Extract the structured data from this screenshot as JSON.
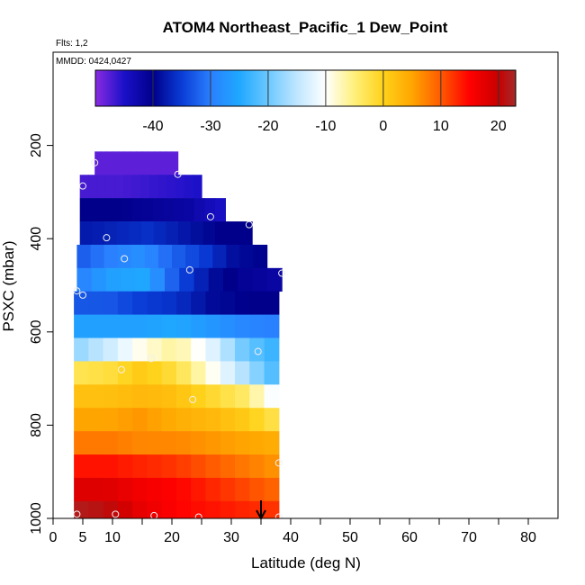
{
  "chart_data": {
    "type": "heatmap",
    "title": "ATOM4 Northeast_Pacific_1 Dew_Point",
    "flights_label": "Flts: 1,2",
    "dates_label": "MMDD: 0424,0427",
    "xlabel": "Latitude (deg N)",
    "ylabel": "PSXC (mbar)",
    "xlim": [
      0,
      85
    ],
    "ylim": [
      1000,
      0
    ],
    "x_ticks": [
      0,
      5,
      10,
      20,
      30,
      40,
      50,
      60,
      70,
      80
    ],
    "x_tick_labels": [
      "0",
      "5",
      "10",
      "20",
      "30",
      "40",
      "50",
      "60",
      "70",
      "80"
    ],
    "y_ticks": [
      200,
      400,
      600,
      800,
      1000
    ],
    "y_tick_labels": [
      "200",
      "400",
      "600",
      "800",
      "1000"
    ],
    "colorbar": {
      "range": [
        -50,
        23
      ],
      "tick_values": [
        -40,
        -30,
        -20,
        -10,
        0,
        10,
        20
      ],
      "tick_labels": [
        "-40",
        "-30",
        "-20",
        "-10",
        "0",
        "10",
        "20"
      ],
      "stops": [
        {
          "v": -50,
          "c": "#8a2be2"
        },
        {
          "v": -45,
          "c": "#1a10c8"
        },
        {
          "v": -40,
          "c": "#00008b"
        },
        {
          "v": -35,
          "c": "#0a3cd6"
        },
        {
          "v": -30,
          "c": "#2a7fff"
        },
        {
          "v": -25,
          "c": "#1fa8ff"
        },
        {
          "v": -20,
          "c": "#6cc8ff"
        },
        {
          "v": -15,
          "c": "#bfe6ff"
        },
        {
          "v": -10,
          "c": "#ffffff"
        },
        {
          "v": -5,
          "c": "#fff07a"
        },
        {
          "v": 0,
          "c": "#ffd21a"
        },
        {
          "v": 5,
          "c": "#ffa500"
        },
        {
          "v": 10,
          "c": "#ff5a00"
        },
        {
          "v": 15,
          "c": "#ff0000"
        },
        {
          "v": 20,
          "c": "#c80000"
        },
        {
          "v": 23,
          "c": "#a52a2a"
        }
      ]
    },
    "rows": [
      {
        "p0": 213,
        "p1": 263,
        "lat0": 7,
        "lat1": 21,
        "values": [
          -48,
          -48,
          -48
        ]
      },
      {
        "p0": 263,
        "p1": 313,
        "lat0": 4.5,
        "lat1": 25,
        "values": [
          -47,
          -47,
          -46,
          -45
        ]
      },
      {
        "p0": 313,
        "p1": 363,
        "lat0": 4.5,
        "lat1": 29,
        "values": [
          -40,
          -40,
          -41,
          -42,
          -45
        ]
      },
      {
        "p0": 363,
        "p1": 413,
        "lat0": 4.5,
        "lat1": 33.5,
        "values": [
          -38,
          -37,
          -36,
          -38,
          -40,
          -40
        ]
      },
      {
        "p0": 413,
        "p1": 463,
        "lat0": 4,
        "lat1": 36,
        "values": [
          -33,
          -30,
          -28,
          -32,
          -35,
          -39,
          -40
        ]
      },
      {
        "p0": 463,
        "p1": 513,
        "lat0": 4,
        "lat1": 38.5,
        "values": [
          -30,
          -26,
          -25,
          -34,
          -39,
          -41,
          -42
        ]
      },
      {
        "p0": 513,
        "p1": 563,
        "lat0": 3.5,
        "lat1": 38,
        "values": [
          -33,
          -33,
          -35,
          -36,
          -39,
          -40,
          -40
        ]
      },
      {
        "p0": 563,
        "p1": 613,
        "lat0": 3.5,
        "lat1": 38,
        "values": [
          -26,
          -26,
          -26,
          -25,
          -27,
          -29,
          -30
        ]
      },
      {
        "p0": 613,
        "p1": 663,
        "lat0": 3.5,
        "lat1": 38,
        "values": [
          -18,
          -14,
          -9,
          -6,
          -12,
          -20,
          -24
        ]
      },
      {
        "p0": 663,
        "p1": 713,
        "lat0": 3.5,
        "lat1": 38,
        "values": [
          -3,
          -2,
          1,
          -2,
          -9,
          -16,
          -23
        ]
      },
      {
        "p0": 713,
        "p1": 763,
        "lat0": 3.5,
        "lat1": 38,
        "values": [
          2,
          2,
          3,
          2,
          -1,
          -4,
          -12
        ]
      },
      {
        "p0": 763,
        "p1": 813,
        "lat0": 3.5,
        "lat1": 38,
        "values": [
          5,
          5,
          6,
          4,
          3,
          1,
          -3
        ]
      },
      {
        "p0": 813,
        "p1": 863,
        "lat0": 3.5,
        "lat1": 38,
        "values": [
          8,
          8,
          7,
          7,
          6,
          5,
          4
        ]
      },
      {
        "p0": 863,
        "p1": 913,
        "lat0": 3.5,
        "lat1": 38,
        "values": [
          14,
          14,
          13,
          12,
          10,
          8,
          6
        ]
      },
      {
        "p0": 913,
        "p1": 963,
        "lat0": 3.5,
        "lat1": 38,
        "values": [
          18,
          18,
          16,
          15,
          13,
          11,
          9
        ]
      },
      {
        "p0": 963,
        "p1": 1013,
        "lat0": 3.5,
        "lat1": 38,
        "values": [
          22,
          21,
          17,
          15,
          14,
          13,
          12
        ]
      }
    ],
    "points": [
      {
        "x": 7,
        "y": 237
      },
      {
        "x": 21,
        "y": 262
      },
      {
        "x": 5,
        "y": 287
      },
      {
        "x": 26.5,
        "y": 353
      },
      {
        "x": 33,
        "y": 370
      },
      {
        "x": 9,
        "y": 398
      },
      {
        "x": 12,
        "y": 443
      },
      {
        "x": 23,
        "y": 467
      },
      {
        "x": 38.5,
        "y": 474
      },
      {
        "x": 4,
        "y": 512
      },
      {
        "x": 5,
        "y": 521
      },
      {
        "x": 34.5,
        "y": 642
      },
      {
        "x": 16.5,
        "y": 657
      },
      {
        "x": 11.5,
        "y": 681
      },
      {
        "x": 23.5,
        "y": 745
      },
      {
        "x": 38,
        "y": 881
      },
      {
        "x": 4,
        "y": 991
      },
      {
        "x": 10.5,
        "y": 991
      },
      {
        "x": 17,
        "y": 994
      },
      {
        "x": 24.5,
        "y": 997
      },
      {
        "x": 38,
        "y": 997
      }
    ],
    "arrow_lat": 35
  }
}
